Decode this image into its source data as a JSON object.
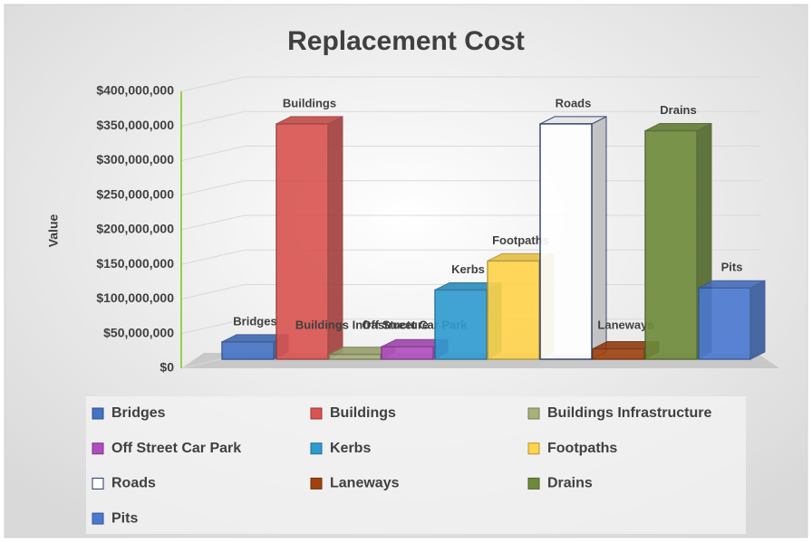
{
  "chart_data": {
    "type": "bar3d",
    "title": "Replacement Cost",
    "y_label": "Value",
    "ylim": [
      0,
      400000000
    ],
    "yticks": [
      {
        "value": 0,
        "label": "$0"
      },
      {
        "value": 50000000,
        "label": "$50,000,000"
      },
      {
        "value": 100000000,
        "label": "$100,000,000"
      },
      {
        "value": 150000000,
        "label": "$150,000,000"
      },
      {
        "value": 200000000,
        "label": "$200,000,000"
      },
      {
        "value": 250000000,
        "label": "$250,000,000"
      },
      {
        "value": 300000000,
        "label": "$300,000,000"
      },
      {
        "value": 350000000,
        "label": "$350,000,000"
      },
      {
        "value": 400000000,
        "label": "$400,000,000"
      }
    ],
    "grid": true,
    "series": [
      {
        "name": "Bridges",
        "color": "#4472c4",
        "values": [
          25000000
        ]
      },
      {
        "name": "Buildings",
        "color": "#d9534f",
        "values": [
          340000000
        ]
      },
      {
        "name": "Buildings Infrastructure",
        "color": "#a9b07a",
        "values": [
          7000000
        ]
      },
      {
        "name": "Off Street Car Park",
        "color": "#b04cc0",
        "values": [
          18000000
        ]
      },
      {
        "name": "Kerbs",
        "color": "#2e9bd0",
        "values": [
          100000000
        ]
      },
      {
        "name": "Footpaths",
        "color": "#ffd34a",
        "values": [
          142000000
        ]
      },
      {
        "name": "Roads",
        "color": "#ffffff",
        "values": [
          340000000
        ]
      },
      {
        "name": "Laneways",
        "color": "#a0420f",
        "values": [
          15000000
        ]
      },
      {
        "name": "Drains",
        "color": "#6d8a3a",
        "values": [
          330000000
        ]
      },
      {
        "name": "Pits",
        "color": "#4b78d0",
        "values": [
          103000000
        ]
      }
    ]
  }
}
